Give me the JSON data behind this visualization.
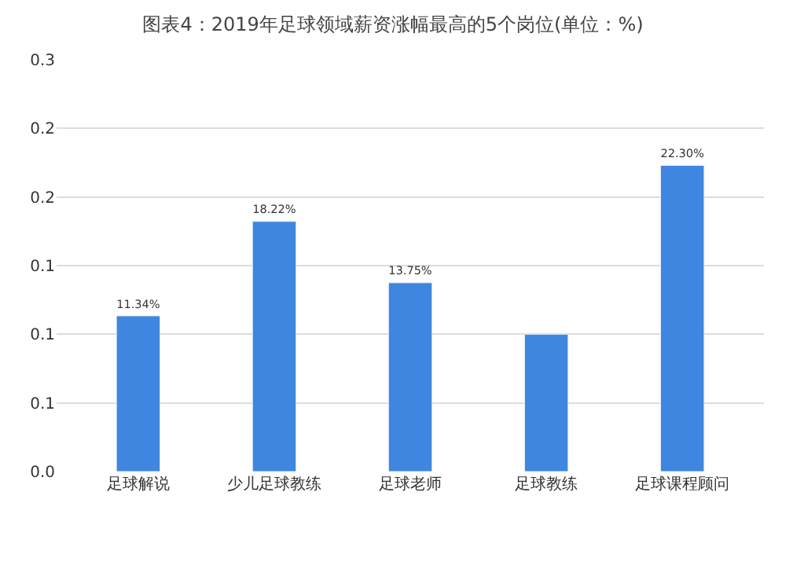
{
  "chart_data": {
    "type": "bar",
    "title": "图表4：2019年足球领域薪资涨幅最高的5个岗位(单位：%)",
    "categories": [
      "足球解说",
      "少儿足球教练",
      "足球老师",
      "足球教练",
      "足球课程顾问"
    ],
    "values": [
      0.1134,
      0.1822,
      0.1375,
      0.1,
      0.223
    ],
    "value_labels": [
      "11.34%",
      "18.22%",
      "13.75%",
      null,
      "22.30%"
    ],
    "color": "#3f86e0",
    "ylim": [
      0,
      0.3
    ],
    "yticks": [
      {
        "value": 0,
        "label": "0.0"
      },
      {
        "value": 0.05,
        "label": "0.1"
      },
      {
        "value": 0.1,
        "label": "0.1"
      },
      {
        "value": 0.15,
        "label": "0.1"
      },
      {
        "value": 0.2,
        "label": "0.2"
      },
      {
        "value": 0.25,
        "label": "0.2"
      },
      {
        "value": 0.3,
        "label": "0.3"
      }
    ],
    "grid": "y",
    "legend": false
  }
}
